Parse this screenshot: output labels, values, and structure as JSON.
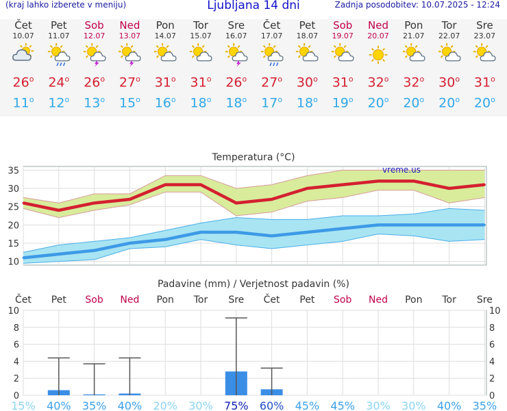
{
  "header": {
    "left_note": "(kraj lahko izberete v meniju)",
    "title": "Ljubljana 14 dni",
    "updated": "Zadnja posodobitev: 10.07.2025 - 12:24"
  },
  "degree_mark": "o",
  "days": [
    {
      "name": "Čet",
      "date": "10.07",
      "weekend": false,
      "icon": "cloud-sun-icon",
      "tmax": "26",
      "tmin": "11"
    },
    {
      "name": "Pet",
      "date": "11.07",
      "weekend": false,
      "icon": "sun-cloud-rain-icon",
      "tmax": "24",
      "tmin": "12"
    },
    {
      "name": "Sob",
      "date": "12.07",
      "weekend": true,
      "icon": "sun-cloud-storm-icon",
      "tmax": "26",
      "tmin": "13"
    },
    {
      "name": "Ned",
      "date": "13.07",
      "weekend": true,
      "icon": "sun-cloud-storm-icon",
      "tmax": "27",
      "tmin": "15"
    },
    {
      "name": "Pon",
      "date": "14.07",
      "weekend": false,
      "icon": "sun-cloud-icon",
      "tmax": "31",
      "tmin": "16"
    },
    {
      "name": "Tor",
      "date": "15.07",
      "weekend": false,
      "icon": "sun-cloud-icon",
      "tmax": "31",
      "tmin": "18"
    },
    {
      "name": "Sre",
      "date": "16.07",
      "weekend": false,
      "icon": "sun-cloud-storm-icon",
      "tmax": "26",
      "tmin": "18"
    },
    {
      "name": "Čet",
      "date": "17.07",
      "weekend": false,
      "icon": "sun-cloud-rain-icon",
      "tmax": "27",
      "tmin": "17"
    },
    {
      "name": "Pet",
      "date": "18.07",
      "weekend": false,
      "icon": "sun-cloud-icon",
      "tmax": "30",
      "tmin": "18"
    },
    {
      "name": "Sob",
      "date": "19.07",
      "weekend": true,
      "icon": "sun-cloud-icon",
      "tmax": "31",
      "tmin": "19"
    },
    {
      "name": "Ned",
      "date": "20.07",
      "weekend": true,
      "icon": "sun-icon",
      "tmax": "32",
      "tmin": "20"
    },
    {
      "name": "Pon",
      "date": "21.07",
      "weekend": false,
      "icon": "sun-cloud-icon",
      "tmax": "32",
      "tmin": "20"
    },
    {
      "name": "Tor",
      "date": "22.07",
      "weekend": false,
      "icon": "sun-cloud-icon",
      "tmax": "30",
      "tmin": "20"
    },
    {
      "name": "Sre",
      "date": "23.07",
      "weekend": false,
      "icon": "sun-cloud-icon",
      "tmax": "31",
      "tmin": "20"
    }
  ],
  "colors": {
    "weekend": "#c0004a",
    "tmax": "#d42030",
    "tmin": "#30a8e8",
    "max_band": "#d8ec9c",
    "min_band": "#a8e4f2",
    "bar": "#3a8ee6"
  },
  "chart_data": [
    {
      "type": "line",
      "title": "Temperatura (°C)",
      "watermark": "vreme.us",
      "x": [
        "10.07",
        "11.07",
        "12.07",
        "13.07",
        "14.07",
        "15.07",
        "16.07",
        "17.07",
        "18.07",
        "19.07",
        "20.07",
        "21.07",
        "22.07",
        "23.07"
      ],
      "ylim": [
        9,
        36
      ],
      "yticks": [
        10,
        15,
        20,
        25,
        30,
        35
      ],
      "grid": true,
      "series": [
        {
          "values": [
            26,
            24,
            26,
            27,
            31,
            31,
            26,
            27,
            30,
            31,
            32,
            32,
            30,
            31
          ],
          "band_upper": [
            27.5,
            26,
            28.5,
            28.5,
            33.5,
            33.5,
            30,
            31,
            33.5,
            35,
            35,
            35,
            35,
            35
          ],
          "band_lower": [
            24.5,
            22,
            24,
            25.5,
            29,
            29,
            22.5,
            23.5,
            26.5,
            27.5,
            29.5,
            29.5,
            26,
            27.5
          ]
        },
        {
          "values": [
            11,
            12,
            13,
            15,
            16,
            18,
            18,
            17,
            18,
            19,
            20,
            20,
            20,
            20
          ],
          "band_upper": [
            12.5,
            14.5,
            15.5,
            16.5,
            18.5,
            20.5,
            22,
            21.5,
            21.5,
            22.5,
            22.5,
            23,
            24.5,
            24
          ],
          "band_lower": [
            9.5,
            10,
            10.5,
            13.5,
            14,
            16,
            14.5,
            13.5,
            14.5,
            15.5,
            17.5,
            17,
            15.5,
            16
          ]
        }
      ]
    },
    {
      "type": "bar",
      "title": "Padavine (mm) / Verjetnost padavin (%)",
      "categories": [
        "Čet",
        "Pet",
        "Sob",
        "Ned",
        "Pon",
        "Tor",
        "Sre",
        "Čet",
        "Pet",
        "Sob",
        "Ned",
        "Pon",
        "Tor",
        "Sre"
      ],
      "weekend": [
        false,
        false,
        true,
        true,
        false,
        false,
        false,
        false,
        false,
        true,
        true,
        false,
        false,
        false
      ],
      "values": [
        0,
        0.6,
        0.1,
        0.2,
        0,
        0,
        2.8,
        0.7,
        0,
        0,
        0,
        0,
        0,
        0
      ],
      "error_max": [
        0,
        4.4,
        3.7,
        4.4,
        0,
        0,
        9.1,
        3.2,
        0,
        0,
        0,
        0,
        0,
        0
      ],
      "ylim": [
        0,
        10
      ],
      "yticks": [
        0,
        2,
        4,
        6,
        8,
        10
      ],
      "probability": [
        "15%",
        "40%",
        "35%",
        "40%",
        "20%",
        "30%",
        "75%",
        "60%",
        "45%",
        "45%",
        "30%",
        "30%",
        "40%",
        "35%"
      ],
      "probability_values": [
        15,
        40,
        35,
        40,
        20,
        30,
        75,
        60,
        45,
        45,
        30,
        30,
        40,
        35
      ],
      "grid": true
    }
  ]
}
